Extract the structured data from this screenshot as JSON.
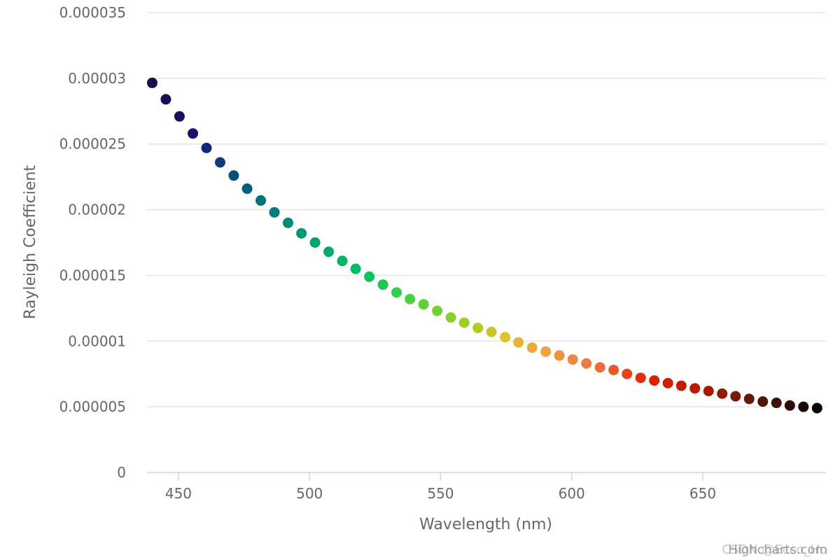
{
  "chart_data": {
    "type": "scatter",
    "title": "",
    "xlabel": "Wavelength (nm)",
    "ylabel": "Rayleigh Coefficient",
    "xlim": [
      438,
      697
    ],
    "ylim": [
      0,
      3.5e-05
    ],
    "x_ticks": [
      450,
      500,
      550,
      600,
      650
    ],
    "x_tick_labels": [
      "450",
      "500",
      "550",
      "600",
      "650"
    ],
    "y_ticks": [
      0,
      5e-06,
      1e-05,
      1.5e-05,
      2e-05,
      2.5e-05,
      3e-05,
      3.5e-05
    ],
    "y_tick_labels": [
      "0",
      "0.000005",
      "0.00001",
      "0.000015",
      "0.00002",
      "0.000025",
      "0.00003",
      "0.000035"
    ],
    "grid": "horizontal",
    "legend": "none",
    "credits": "Highcharts.com",
    "watermark": "CSDN @Ecco_Ho",
    "series": [
      {
        "x": [
          440,
          445.2,
          450.4,
          455.5,
          460.7,
          465.9,
          471.1,
          476.2,
          481.4,
          486.6,
          491.8,
          496.9,
          502.1,
          507.3,
          512.5,
          517.6,
          522.8,
          528,
          533.2,
          538.3,
          543.5,
          548.7,
          553.9,
          559,
          564.2,
          569.4,
          574.6,
          579.7,
          584.9,
          590.1,
          595.3,
          600.4,
          605.6,
          610.8,
          616,
          621.1,
          626.3,
          631.5,
          636.7,
          641.8,
          647,
          652.2,
          657.4,
          662.5,
          667.7,
          672.9,
          678.1,
          683.2,
          688.4,
          693.6
        ],
        "y": [
          2.965e-05,
          2.84e-05,
          2.71e-05,
          2.58e-05,
          2.47e-05,
          2.36e-05,
          2.26e-05,
          2.16e-05,
          2.07e-05,
          1.98e-05,
          1.9e-05,
          1.82e-05,
          1.75e-05,
          1.68e-05,
          1.61e-05,
          1.55e-05,
          1.49e-05,
          1.43e-05,
          1.37e-05,
          1.32e-05,
          1.28e-05,
          1.23e-05,
          1.18e-05,
          1.14e-05,
          1.1e-05,
          1.07e-05,
          1.03e-05,
          9.9e-06,
          9.5e-06,
          9.2e-06,
          8.9e-06,
          8.6e-06,
          8.3e-06,
          8e-06,
          7.8e-06,
          7.5e-06,
          7.2e-06,
          7e-06,
          6.8e-06,
          6.6e-06,
          6.4e-06,
          6.2e-06,
          6e-06,
          5.8e-06,
          5.6e-06,
          5.4e-06,
          5.3e-06,
          5.1e-06,
          5e-06,
          4.9e-06
        ]
      }
    ],
    "color_stops": [
      {
        "x": 440,
        "color": "#1a0b4a"
      },
      {
        "x": 455,
        "color": "#1b0f6b"
      },
      {
        "x": 465,
        "color": "#0d3a7a"
      },
      {
        "x": 480,
        "color": "#006d7a"
      },
      {
        "x": 500,
        "color": "#00a070"
      },
      {
        "x": 520,
        "color": "#00c060"
      },
      {
        "x": 540,
        "color": "#50d040"
      },
      {
        "x": 560,
        "color": "#a0d020"
      },
      {
        "x": 575,
        "color": "#e0c030"
      },
      {
        "x": 590,
        "color": "#f0a040"
      },
      {
        "x": 610,
        "color": "#f07040"
      },
      {
        "x": 630,
        "color": "#e02000"
      },
      {
        "x": 650,
        "color": "#b01a00"
      },
      {
        "x": 670,
        "color": "#5a1a0a"
      },
      {
        "x": 695,
        "color": "#000000"
      }
    ],
    "colors": {
      "grid": "#e6e6e6",
      "axis": "#ccd6eb",
      "text": "#666666"
    }
  }
}
